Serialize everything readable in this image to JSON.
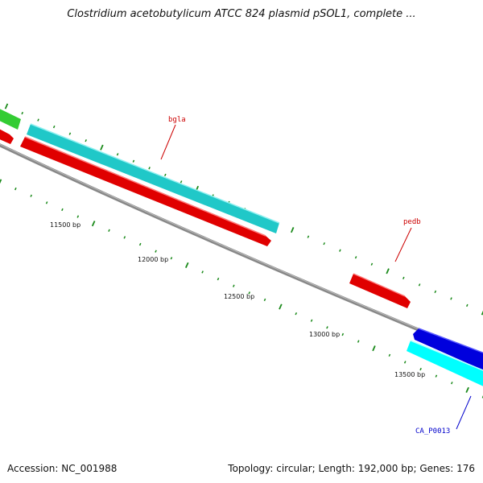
{
  "title": "Clostridium acetobutylicum ATCC 824 plasmid pSOL1, complete ...",
  "footer": {
    "accession": "Accession: NC_001988",
    "summary": "Topology: circular; Length: 192,000 bp; Genes: 176"
  },
  "ticks": [
    "11500 bp",
    "12000 bp",
    "12500 bp",
    "13000 bp",
    "13500 bp"
  ],
  "genes": {
    "bgla": {
      "label": "bgla",
      "label_color": "#cc0000",
      "color": "#e00000"
    },
    "pedb": {
      "label": "pedb",
      "label_color": "#cc0000",
      "color": "#e00000"
    },
    "ca_p0013": {
      "label": "CA_P0013",
      "label_color": "#0000cc",
      "color": "#00ffff"
    },
    "cyan_feature": {
      "color": "#20c8c8"
    },
    "green_feature": {
      "color": "#33cc33"
    },
    "blue_feature": {
      "color": "#0000dd"
    }
  }
}
